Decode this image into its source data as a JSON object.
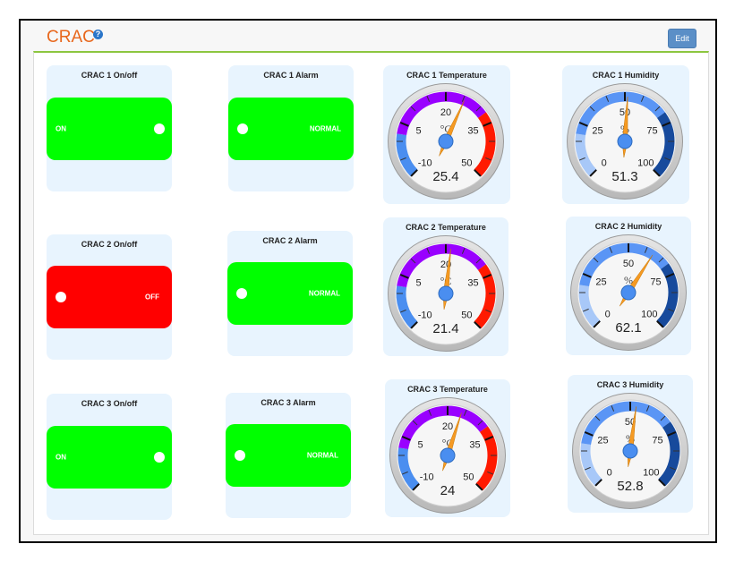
{
  "header": {
    "title": "CRAC",
    "help_icon": "question-circle-icon",
    "edit_label": "Edit"
  },
  "colors": {
    "title_orange": "#e8671c",
    "accent_green_rule": "#8cc63f",
    "on_green": "#00ff00",
    "off_red": "#ff0000",
    "card_bg": "#e8f4fe",
    "edit_button": "#5b8fc7",
    "temp_low_blue": "#4a8ef0",
    "temp_mid_purple": "#9900ff",
    "temp_high_red": "#ff1a00",
    "hum_low": "#a8c8f8",
    "hum_mid": "#5a95f5",
    "hum_high": "#174a9c",
    "needle_orange": "#f59a23",
    "hub_blue": "#4a8ef0"
  },
  "units": [
    {
      "onoff": {
        "title": "CRAC 1 On/off",
        "state": "ON",
        "on": true
      },
      "alarm": {
        "title": "CRAC 1 Alarm",
        "state": "NORMAL"
      },
      "temperature": {
        "title": "CRAC 1 Temperature",
        "unit": "°C",
        "value": "25.4",
        "min": -10,
        "max": 50,
        "ticks": [
          "-10",
          "5",
          "20",
          "35",
          "50"
        ]
      },
      "humidity": {
        "title": "CRAC 1 Humidity",
        "unit": "%",
        "value": "51.3",
        "min": 0,
        "max": 100,
        "ticks": [
          "0",
          "25",
          "50",
          "75",
          "100"
        ]
      }
    },
    {
      "onoff": {
        "title": "CRAC 2 On/off",
        "state": "OFF",
        "on": false
      },
      "alarm": {
        "title": "CRAC 2 Alarm",
        "state": "NORMAL"
      },
      "temperature": {
        "title": "CRAC 2 Temperature",
        "unit": "°C",
        "value": "21.4",
        "min": -10,
        "max": 50,
        "ticks": [
          "-10",
          "5",
          "20",
          "35",
          "50"
        ]
      },
      "humidity": {
        "title": "CRAC 2 Humidity",
        "unit": "%",
        "value": "62.1",
        "min": 0,
        "max": 100,
        "ticks": [
          "0",
          "25",
          "50",
          "75",
          "100"
        ]
      }
    },
    {
      "onoff": {
        "title": "CRAC 3 On/off",
        "state": "ON",
        "on": true
      },
      "alarm": {
        "title": "CRAC 3 Alarm",
        "state": "NORMAL"
      },
      "temperature": {
        "title": "CRAC 3 Temperature",
        "unit": "°C",
        "value": "24",
        "min": -10,
        "max": 50,
        "ticks": [
          "-10",
          "5",
          "20",
          "35",
          "50"
        ]
      },
      "humidity": {
        "title": "CRAC 3 Humidity",
        "unit": "%",
        "value": "52.8",
        "min": 0,
        "max": 100,
        "ticks": [
          "0",
          "25",
          "50",
          "75",
          "100"
        ]
      }
    }
  ]
}
